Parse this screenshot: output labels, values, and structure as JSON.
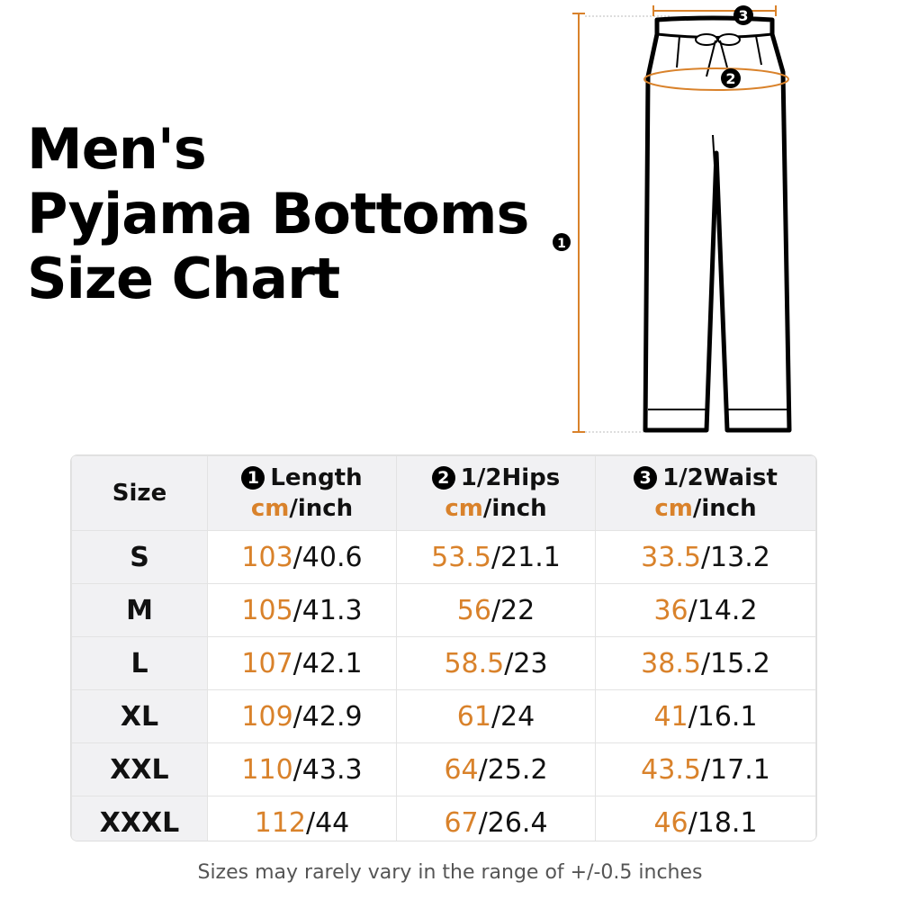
{
  "title": {
    "line1": "Men's",
    "line2": "Pyjama Bottoms",
    "line3": "Size Chart"
  },
  "diagram": {
    "markers": [
      "1",
      "2",
      "3"
    ],
    "accent_color": "#d9822b"
  },
  "table": {
    "headers": {
      "size": "Size",
      "length": {
        "num": "1",
        "label": "Length"
      },
      "hips": {
        "num": "2",
        "label": "1/2Hips"
      },
      "waist": {
        "num": "3",
        "label": "1/2Waist"
      },
      "unit_cm": "cm",
      "unit_inch": "/inch"
    },
    "rows": [
      {
        "size": "S",
        "length_cm": "103",
        "length_in": "/40.6",
        "hips_cm": "53.5",
        "hips_in": "/21.1",
        "waist_cm": "33.5",
        "waist_in": "/13.2"
      },
      {
        "size": "M",
        "length_cm": "105",
        "length_in": "/41.3",
        "hips_cm": "56",
        "hips_in": "/22",
        "waist_cm": "36",
        "waist_in": "/14.2"
      },
      {
        "size": "L",
        "length_cm": "107",
        "length_in": "/42.1",
        "hips_cm": "58.5",
        "hips_in": "/23",
        "waist_cm": "38.5",
        "waist_in": "/15.2"
      },
      {
        "size": "XL",
        "length_cm": "109",
        "length_in": "/42.9",
        "hips_cm": "61",
        "hips_in": "/24",
        "waist_cm": "41",
        "waist_in": "/16.1"
      },
      {
        "size": "XXL",
        "length_cm": "110",
        "length_in": "/43.3",
        "hips_cm": "64",
        "hips_in": "/25.2",
        "waist_cm": "43.5",
        "waist_in": "/17.1"
      },
      {
        "size": "XXXL",
        "length_cm": "112",
        "length_in": "/44",
        "hips_cm": "67",
        "hips_in": "/26.4",
        "waist_cm": "46",
        "waist_in": "/18.1"
      }
    ]
  },
  "note": "Sizes may rarely vary in the range of +/-0.5 inches"
}
